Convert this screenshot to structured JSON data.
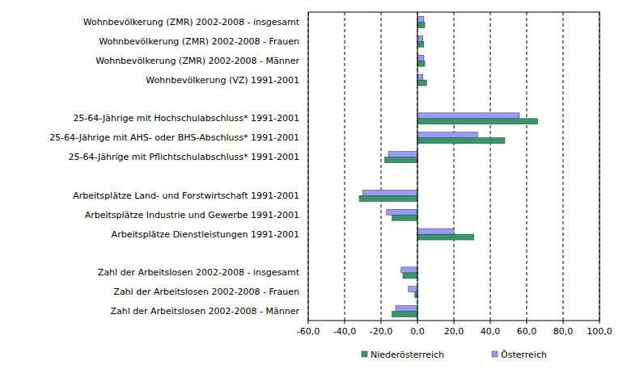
{
  "chart_data": {
    "type": "bar",
    "orientation": "horizontal",
    "grid": true,
    "legend": "bottom",
    "categories": [
      "Wohnbevölkerung (ZMR) 2002-2008 - insgesamt",
      "Wohnbevölkerung (ZMR) 2002-2008 - Frauen",
      "Wohnbevölkerung (ZMR) 2002-2008 - Männer",
      "Wohnbevölkerung (VZ) 1991-2001",
      null,
      "25-64-Jährige mit Hochschulabschluss* 1991-2001",
      "25-64-Jährige mit AHS- oder BHS-Abschluss* 1991-2001",
      "25-64-Jährige mit Pflichtschulabschluss* 1991-2001",
      null,
      "Arbeitsplätze Land- und Forstwirtschaft 1991-2001",
      "Arbeitsplätze Industrie und Gewerbe 1991-2001",
      "Arbeitsplätze Dienstleistungen 1991-2001",
      null,
      "Zahl der Arbeitslosen 2002-2008 - insgesamt",
      "Zahl der Arbeitslosen 2002-2008 - Frauen",
      "Zahl der Arbeitslosen 2002-2008 - Männer"
    ],
    "series": [
      {
        "name": "Niederösterreich",
        "color": "#339966",
        "values": [
          4,
          3.5,
          4,
          5,
          null,
          66,
          48,
          -18,
          null,
          -32,
          -14,
          31,
          null,
          -8,
          -1.5,
          -14
        ]
      },
      {
        "name": "Österreich",
        "color": "#9999ff",
        "values": [
          3.5,
          3,
          3.5,
          3,
          null,
          56,
          33,
          -16,
          null,
          -30,
          -17,
          20,
          null,
          -9,
          -5,
          -12
        ]
      }
    ],
    "xlim": [
      -60,
      100
    ],
    "xticks": [
      {
        "value": -60,
        "label": "-60,0"
      },
      {
        "value": -40,
        "label": "-40,0"
      },
      {
        "value": -20,
        "label": "-20,0"
      },
      {
        "value": 0,
        "label": "0,0"
      },
      {
        "value": 20,
        "label": "20,0"
      },
      {
        "value": 40,
        "label": "40,0"
      },
      {
        "value": 60,
        "label": "60,0"
      },
      {
        "value": 80,
        "label": "80,0"
      },
      {
        "value": 100,
        "label": "100,0"
      }
    ]
  }
}
